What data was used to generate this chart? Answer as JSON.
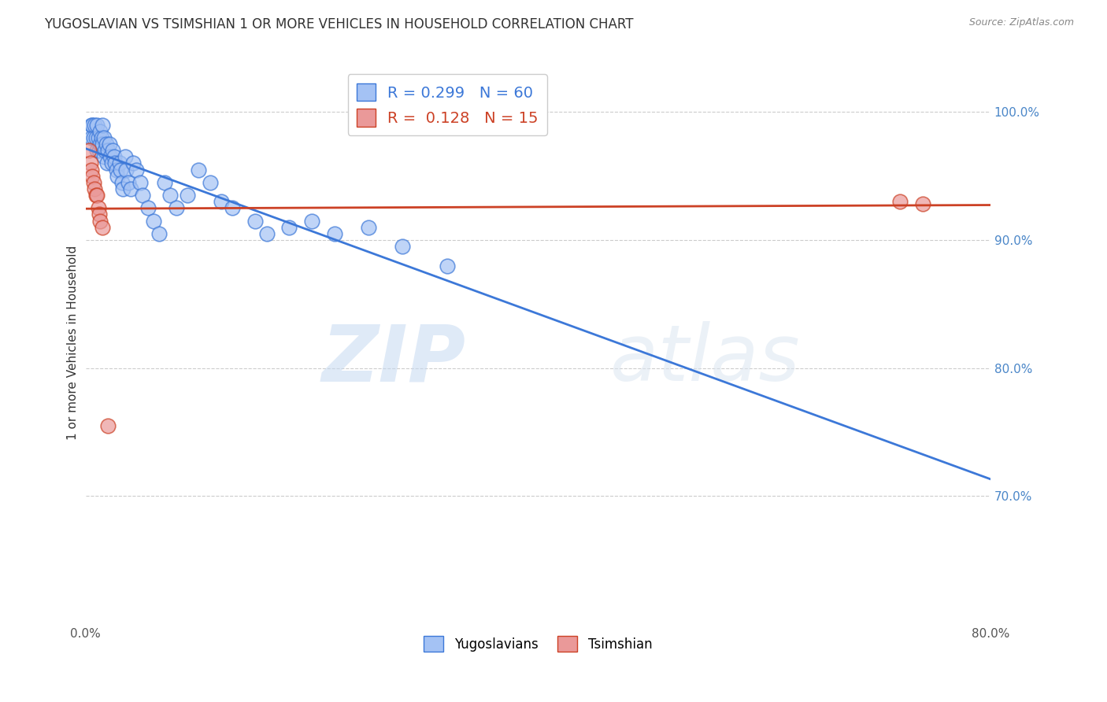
{
  "title": "YUGOSLAVIAN VS TSIMSHIAN 1 OR MORE VEHICLES IN HOUSEHOLD CORRELATION CHART",
  "source": "Source: ZipAtlas.com",
  "xlabel_ticks": [
    "0.0%",
    "",
    "",
    "",
    "",
    "",
    "",
    "",
    "80.0%"
  ],
  "ylabel_label": "1 or more Vehicles in Household",
  "ylabel_ticks": [
    "100.0%",
    "90.0%",
    "80.0%",
    "70.0%"
  ],
  "xmin": 0.0,
  "xmax": 0.8,
  "ymin": 0.6,
  "ymax": 1.04,
  "legend_blue_label": "Yugoslavians",
  "legend_pink_label": "Tsimshian",
  "R_blue": 0.299,
  "N_blue": 60,
  "R_pink": 0.128,
  "N_pink": 15,
  "blue_color": "#a4c2f4",
  "pink_color": "#ea9999",
  "blue_line_color": "#3c78d8",
  "pink_line_color": "#cc4125",
  "watermark_zip": "ZIP",
  "watermark_atlas": "atlas",
  "blue_points_x": [
    0.005,
    0.005,
    0.006,
    0.007,
    0.008,
    0.009,
    0.01,
    0.01,
    0.011,
    0.012,
    0.013,
    0.013,
    0.014,
    0.015,
    0.015,
    0.016,
    0.016,
    0.017,
    0.018,
    0.019,
    0.02,
    0.021,
    0.022,
    0.023,
    0.024,
    0.025,
    0.026,
    0.027,
    0.028,
    0.03,
    0.031,
    0.032,
    0.033,
    0.035,
    0.036,
    0.038,
    0.04,
    0.042,
    0.045,
    0.048,
    0.05,
    0.055,
    0.06,
    0.065,
    0.07,
    0.075,
    0.08,
    0.09,
    0.1,
    0.11,
    0.12,
    0.13,
    0.15,
    0.16,
    0.18,
    0.2,
    0.22,
    0.25,
    0.28,
    0.32
  ],
  "blue_points_y": [
    0.99,
    0.98,
    0.99,
    0.98,
    0.99,
    0.98,
    0.99,
    0.97,
    0.98,
    0.97,
    0.985,
    0.975,
    0.98,
    0.99,
    0.975,
    0.98,
    0.965,
    0.97,
    0.975,
    0.96,
    0.97,
    0.975,
    0.965,
    0.96,
    0.97,
    0.965,
    0.96,
    0.955,
    0.95,
    0.96,
    0.955,
    0.945,
    0.94,
    0.965,
    0.955,
    0.945,
    0.94,
    0.96,
    0.955,
    0.945,
    0.935,
    0.925,
    0.915,
    0.905,
    0.945,
    0.935,
    0.925,
    0.935,
    0.955,
    0.945,
    0.93,
    0.925,
    0.915,
    0.905,
    0.91,
    0.915,
    0.905,
    0.91,
    0.895,
    0.88
  ],
  "pink_points_x": [
    0.003,
    0.004,
    0.005,
    0.006,
    0.007,
    0.008,
    0.009,
    0.01,
    0.011,
    0.012,
    0.013,
    0.015,
    0.02,
    0.72,
    0.74
  ],
  "pink_points_y": [
    0.97,
    0.96,
    0.955,
    0.95,
    0.945,
    0.94,
    0.935,
    0.935,
    0.925,
    0.92,
    0.915,
    0.91,
    0.755,
    0.93,
    0.928
  ]
}
